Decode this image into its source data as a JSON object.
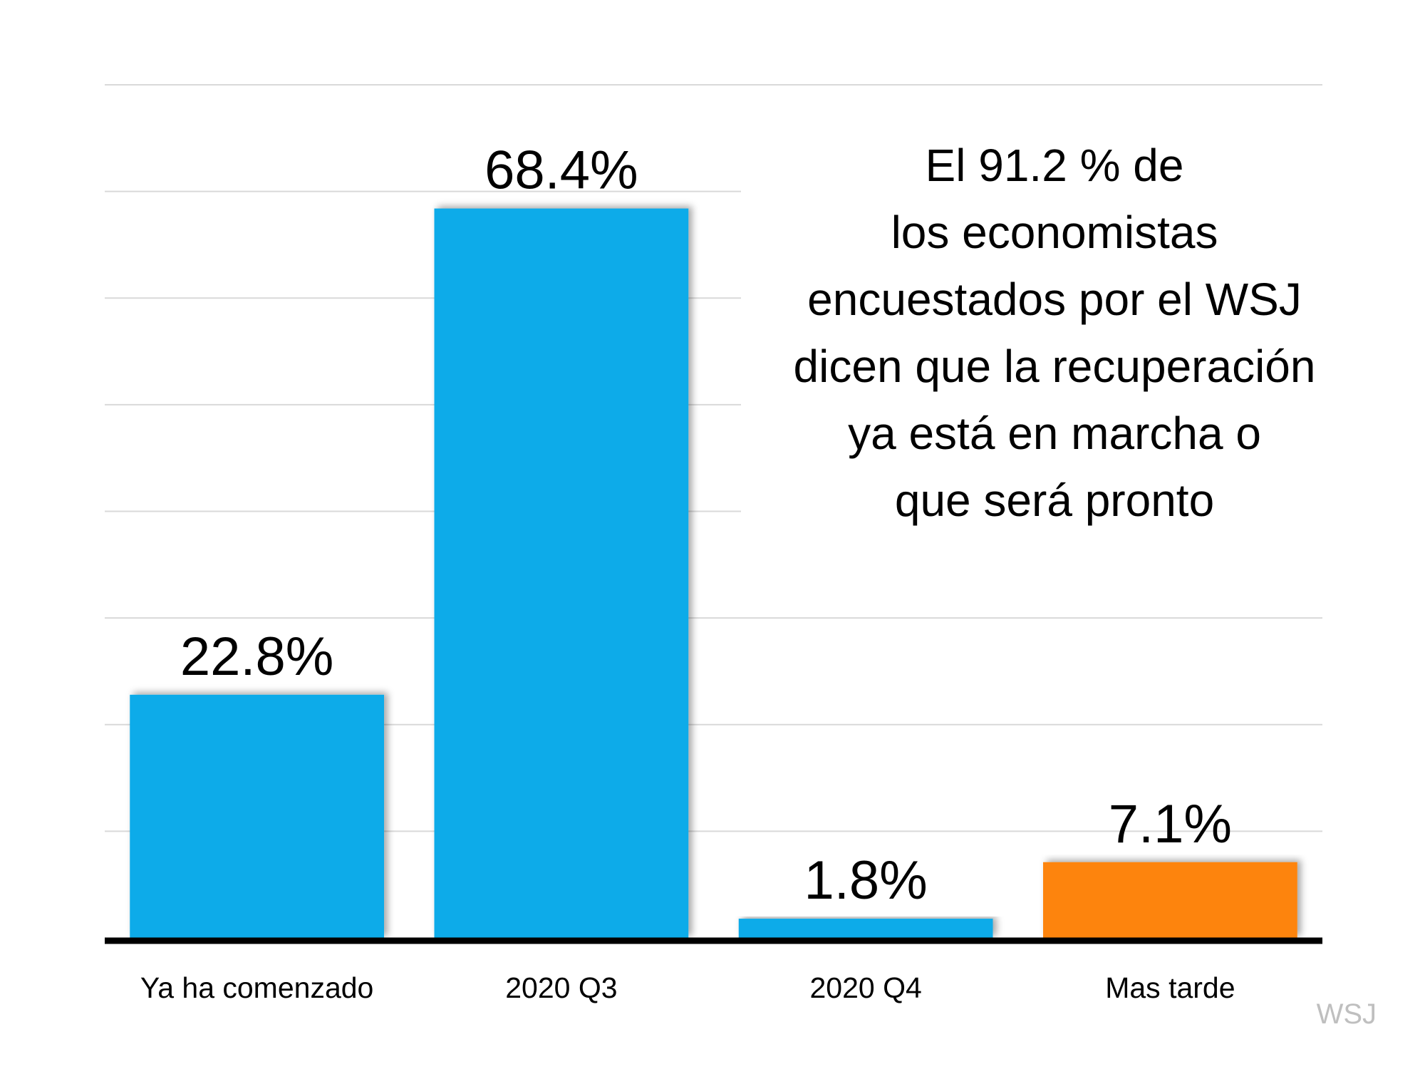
{
  "chart_data": {
    "type": "bar",
    "categories": [
      "Ya ha comenzado",
      "2020 Q3",
      "2020 Q4",
      "Mas tarde"
    ],
    "values": [
      22.8,
      68.4,
      1.8,
      7.1
    ],
    "data_labels": [
      "22.8%",
      "68.4%",
      "1.8%",
      "7.1%"
    ],
    "bar_colors": [
      "#0fabe9",
      "#0fabe9",
      "#0fabe9",
      "#fd840b"
    ],
    "title": "",
    "xlabel": "",
    "ylabel": "",
    "ylim": [
      0,
      80
    ],
    "grid_step": 10,
    "grid": true,
    "y_tick_labels_shown": false,
    "legend": "none",
    "annotation_lines": [
      "El 91.2 % de",
      "los economistas",
      "encuestados por el WSJ",
      "dicen que la recuperación",
      "ya está en marcha o",
      "que será pronto"
    ],
    "source": "WSJ"
  }
}
